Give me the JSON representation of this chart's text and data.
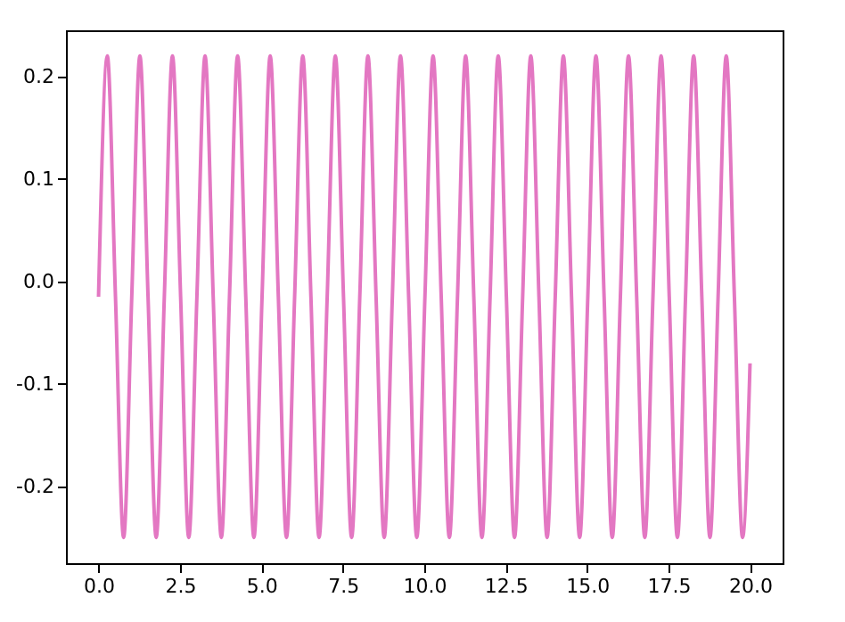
{
  "chart_data": {
    "type": "line",
    "xlim": [
      -1.0,
      21.0
    ],
    "ylim": [
      -0.275,
      0.245
    ],
    "xticks": [
      {
        "value": 0,
        "label": "0.0"
      },
      2.5,
      {
        "value": 5,
        "label": "5.0"
      },
      7.5,
      {
        "value": 10,
        "label": "10.0"
      },
      12.5,
      {
        "value": 15,
        "label": "15.0"
      },
      17.5,
      {
        "value": 20,
        "label": "20.0"
      }
    ],
    "yticks": [
      -0.2,
      -0.1,
      {
        "value": 0,
        "label": "0.0"
      },
      0.1,
      0.2
    ],
    "grid": false,
    "marker": "none",
    "line_style": "solid",
    "x": [
      0,
      0.27,
      0.52,
      0.77,
      1.02,
      1.27,
      1.52,
      1.77,
      2.02,
      2.27,
      2.52,
      2.77,
      3.02,
      3.27,
      3.52,
      3.77,
      4.02,
      4.27,
      4.52,
      4.77,
      5.02,
      5.27,
      5.52,
      5.77,
      6.02,
      6.27,
      6.52,
      6.77,
      7.02,
      7.27,
      7.52,
      7.77,
      8.02,
      8.27,
      8.52,
      8.77,
      9.02,
      9.27,
      9.52,
      9.77,
      10.02,
      10.27,
      10.52,
      10.77,
      11.02,
      11.27,
      11.52,
      11.77,
      12.02,
      12.27,
      12.52,
      12.77,
      13.02,
      13.27,
      13.52,
      13.77,
      14.02,
      14.27,
      14.52,
      14.77,
      15.02,
      15.27,
      15.52,
      15.77,
      16.02,
      16.27,
      16.52,
      16.77,
      17.02,
      17.27,
      17.52,
      17.77,
      18.02,
      18.27,
      18.52,
      18.77,
      19.02,
      19.27,
      19.52,
      19.77,
      20.0
    ],
    "series": [
      {
        "color": "#e377c2",
        "values": [
          -0.015,
          0.22,
          -0.015,
          -0.25,
          -0.015,
          0.22,
          -0.015,
          -0.25,
          -0.015,
          0.22,
          -0.015,
          -0.25,
          -0.015,
          0.22,
          -0.015,
          -0.25,
          -0.015,
          0.22,
          -0.015,
          -0.25,
          -0.015,
          0.22,
          -0.015,
          -0.25,
          -0.015,
          0.22,
          -0.015,
          -0.25,
          -0.015,
          0.22,
          -0.015,
          -0.25,
          -0.015,
          0.22,
          -0.015,
          -0.25,
          -0.015,
          0.22,
          -0.015,
          -0.25,
          -0.015,
          0.22,
          -0.015,
          -0.25,
          -0.015,
          0.22,
          -0.015,
          -0.25,
          -0.015,
          0.22,
          -0.015,
          -0.25,
          -0.015,
          0.22,
          -0.015,
          -0.25,
          -0.015,
          0.22,
          -0.015,
          -0.25,
          -0.015,
          0.22,
          -0.015,
          -0.25,
          -0.015,
          0.22,
          -0.015,
          -0.25,
          -0.015,
          0.22,
          -0.015,
          -0.25,
          -0.015,
          0.22,
          -0.015,
          -0.25,
          -0.015,
          0.22,
          -0.015,
          -0.25,
          -0.08
        ]
      }
    ]
  }
}
